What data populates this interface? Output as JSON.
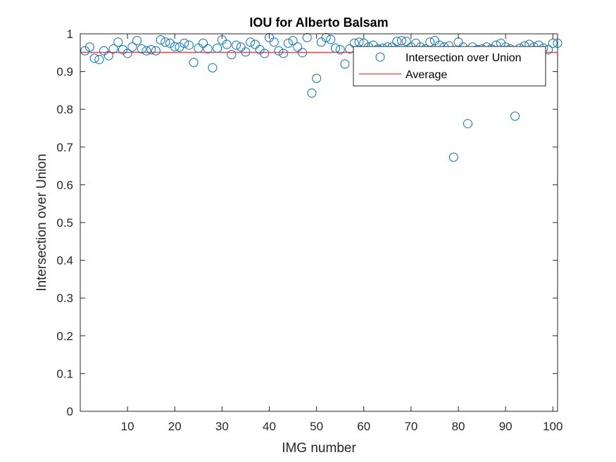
{
  "chart_data": {
    "type": "scatter",
    "title": "IOU for Alberto Balsam",
    "xlabel": "IMG number",
    "ylabel": "Intersection over Union",
    "xlim": [
      0,
      101
    ],
    "ylim": [
      0,
      1
    ],
    "xticks": [
      10,
      20,
      30,
      40,
      50,
      60,
      70,
      80,
      90,
      100
    ],
    "yticks": [
      0,
      0.1,
      0.2,
      0.3,
      0.4,
      0.5,
      0.6,
      0.7,
      0.8,
      0.9,
      1
    ],
    "ytick_labels": [
      "0",
      "0.1",
      "0.2",
      "0.3",
      "0.4",
      "0.5",
      "0.6",
      "0.7",
      "0.8",
      "0.9",
      "1"
    ],
    "grid": false,
    "legend_position": "top-right",
    "colors": {
      "points": "#0072BD",
      "average": "#FF0000",
      "axes": "#262626"
    },
    "series": [
      {
        "name": "Intersection over Union",
        "marker": "circle",
        "x": [
          1,
          2,
          3,
          4,
          5,
          6,
          7,
          8,
          9,
          10,
          11,
          12,
          13,
          14,
          15,
          16,
          17,
          18,
          19,
          20,
          21,
          22,
          23,
          24,
          25,
          26,
          27,
          28,
          29,
          30,
          31,
          32,
          33,
          34,
          35,
          36,
          37,
          38,
          39,
          40,
          41,
          42,
          43,
          44,
          45,
          46,
          47,
          48,
          49,
          50,
          51,
          52,
          53,
          54,
          55,
          56,
          57,
          58,
          59,
          60,
          61,
          62,
          63,
          64,
          65,
          66,
          67,
          68,
          69,
          70,
          71,
          72,
          73,
          74,
          75,
          76,
          77,
          78,
          79,
          80,
          81,
          82,
          83,
          84,
          85,
          86,
          87,
          88,
          89,
          90,
          91,
          92,
          93,
          94,
          95,
          96,
          97,
          98,
          99,
          100,
          101
        ],
        "y": [
          0.955,
          0.965,
          0.935,
          0.932,
          0.955,
          0.942,
          0.96,
          0.978,
          0.958,
          0.948,
          0.965,
          0.982,
          0.96,
          0.955,
          0.958,
          0.955,
          0.984,
          0.978,
          0.975,
          0.966,
          0.965,
          0.975,
          0.97,
          0.924,
          0.962,
          0.975,
          0.96,
          0.91,
          0.962,
          0.984,
          0.972,
          0.945,
          0.97,
          0.965,
          0.952,
          0.978,
          0.972,
          0.958,
          0.948,
          0.99,
          0.978,
          0.955,
          0.948,
          0.975,
          0.982,
          0.965,
          0.95,
          0.99,
          0.843,
          0.882,
          0.978,
          0.99,
          0.985,
          0.962,
          0.958,
          0.92,
          0.96,
          0.975,
          0.978,
          0.975,
          0.965,
          0.97,
          0.96,
          0.962,
          0.965,
          0.965,
          0.98,
          0.982,
          0.98,
          0.965,
          0.975,
          0.965,
          0.96,
          0.978,
          0.982,
          0.97,
          0.965,
          0.968,
          0.673,
          0.978,
          0.965,
          0.762,
          0.965,
          0.958,
          0.96,
          0.965,
          0.96,
          0.97,
          0.975,
          0.965,
          0.96,
          0.782,
          0.962,
          0.968,
          0.972,
          0.965,
          0.97,
          0.962,
          0.958,
          0.975,
          0.975
        ]
      },
      {
        "name": "Average",
        "type": "line",
        "x": [
          0,
          101
        ],
        "y": [
          0.951,
          0.951
        ]
      }
    ]
  }
}
